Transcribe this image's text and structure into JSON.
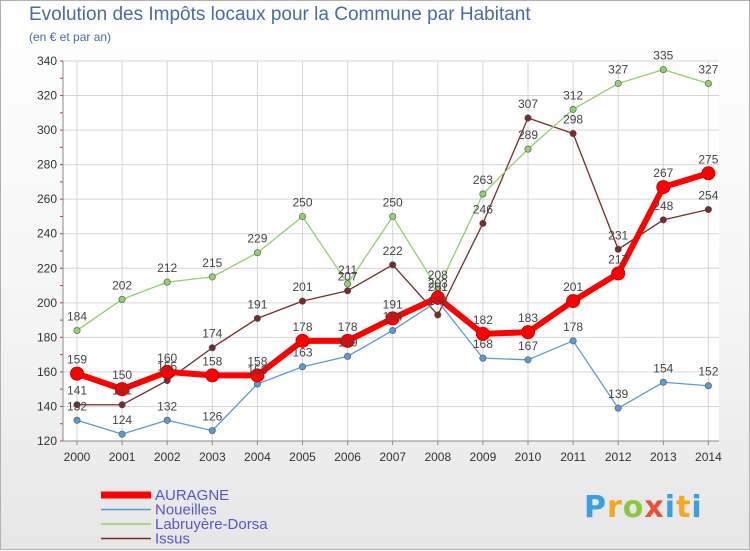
{
  "title": "Evolution des Impôts locaux pour la Commune par Habitant",
  "subtitle": "(en € et par an)",
  "logo": {
    "text": "Proxiti",
    "letters": [
      "P",
      "r",
      "o",
      "x",
      "i",
      "t",
      "i"
    ]
  },
  "chart_data": {
    "type": "line",
    "title": "Evolution des Impôts locaux pour la Commune par Habitant",
    "ylabel": "(en € et par an)",
    "xlabel": "",
    "x": [
      2000,
      2001,
      2002,
      2003,
      2004,
      2005,
      2006,
      2007,
      2008,
      2009,
      2010,
      2011,
      2012,
      2013,
      2014
    ],
    "ylim": [
      120,
      340
    ],
    "yticks": [
      120,
      140,
      160,
      180,
      200,
      220,
      240,
      260,
      280,
      300,
      320,
      340
    ],
    "grid": true,
    "legend_position": "bottom-left",
    "series": [
      {
        "name": "AURAGNE",
        "color": "#ff0000",
        "values": [
          159,
          150,
          160,
          158,
          158,
          178,
          178,
          191,
          203,
          182,
          183,
          201,
          217,
          267,
          275
        ],
        "labels": [
          "159",
          "150",
          "160",
          "158",
          "158",
          "178",
          "178",
          "191",
          "203",
          "182",
          "183",
          "201",
          "217",
          "267",
          "275"
        ]
      },
      {
        "name": "Noueilles",
        "color": "#5b9bd5",
        "values": [
          132,
          124,
          132,
          126,
          153,
          163,
          169,
          184,
          201,
          168,
          167,
          178,
          139,
          154,
          152
        ],
        "labels": [
          "132",
          "124",
          "132",
          "126",
          "153",
          "163",
          "169",
          "184",
          "201",
          "168",
          "167",
          "178",
          "139",
          "154",
          "152"
        ]
      },
      {
        "name": "Labruyère-Dorsa",
        "color": "#8fd16a",
        "values": [
          184,
          202,
          212,
          215,
          229,
          250,
          211,
          250,
          208,
          263,
          289,
          312,
          327,
          335,
          327
        ],
        "labels": [
          "184",
          "202",
          "212",
          "215",
          "229",
          "250",
          "211",
          "250",
          "208",
          "263",
          "289",
          "312",
          "327",
          "335",
          "327"
        ]
      },
      {
        "name": "Issus",
        "color": "#7a2a2a",
        "values": [
          141,
          141,
          155,
          174,
          191,
          201,
          207,
          222,
          193,
          246,
          307,
          298,
          231,
          248,
          254
        ],
        "labels": [
          "141",
          "141",
          "155",
          "174",
          "191",
          "201",
          "207",
          "222",
          "193",
          "246",
          "307",
          "298",
          "231",
          "248",
          "254"
        ]
      }
    ]
  }
}
